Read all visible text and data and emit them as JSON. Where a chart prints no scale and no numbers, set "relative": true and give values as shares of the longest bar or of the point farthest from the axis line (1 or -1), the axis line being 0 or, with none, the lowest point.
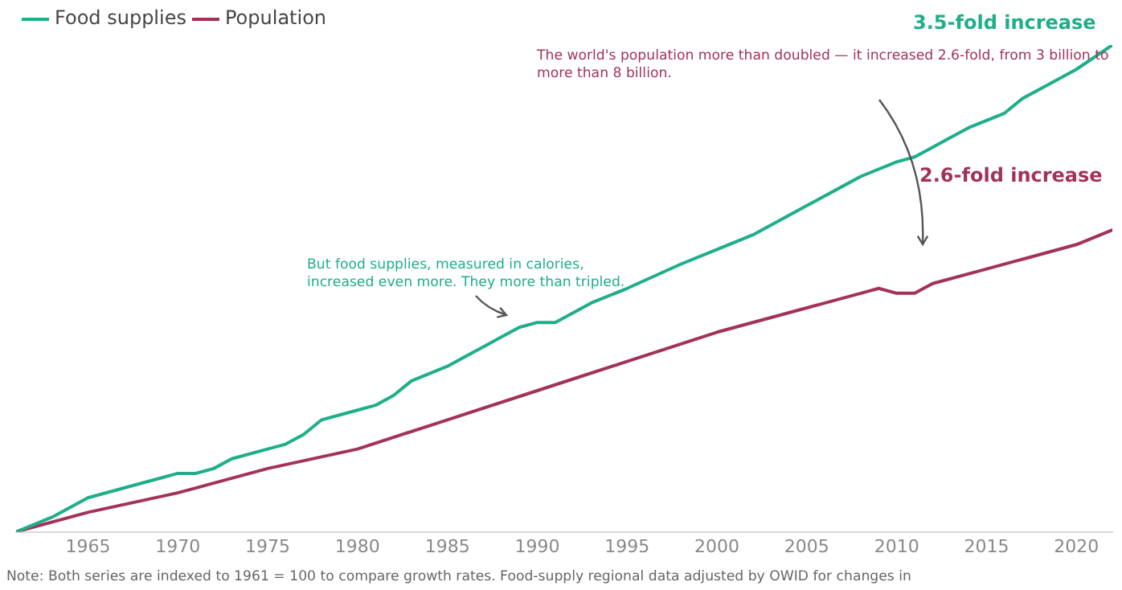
{
  "chart_data": {
    "type": "line",
    "relative": true,
    "xlim": [
      1961,
      2022
    ],
    "xticks": [
      1965,
      1970,
      1975,
      1980,
      1985,
      1990,
      1995,
      2000,
      2005,
      2010,
      2015,
      2020
    ],
    "grid": false,
    "legend": "top left",
    "marker": "none",
    "line_style": "solid",
    "series": [
      {
        "name": "Food supplies",
        "color": "#1fae8a",
        "x": [
          1961,
          1963,
          1965,
          1968,
          1969,
          1970,
          1971,
          1972,
          1973,
          1975,
          1976,
          1977,
          1978,
          1979,
          1980,
          1981,
          1982,
          1983,
          1985,
          1986,
          1987,
          1988,
          1989,
          1990,
          1991,
          1993,
          1995,
          1998,
          2000,
          2002,
          2005,
          2007,
          2008,
          2010,
          2011,
          2012,
          2013,
          2014,
          2016,
          2017,
          2018,
          2020,
          2022
        ],
        "values": [
          0,
          0.03,
          0.07,
          0.1,
          0.11,
          0.12,
          0.12,
          0.13,
          0.15,
          0.17,
          0.18,
          0.2,
          0.23,
          0.24,
          0.25,
          0.26,
          0.28,
          0.31,
          0.34,
          0.36,
          0.38,
          0.4,
          0.42,
          0.43,
          0.43,
          0.47,
          0.5,
          0.55,
          0.58,
          0.61,
          0.67,
          0.71,
          0.73,
          0.76,
          0.77,
          0.79,
          0.81,
          0.83,
          0.86,
          0.89,
          0.91,
          0.95,
          1
        ]
      },
      {
        "name": "Population",
        "color": "#a3325a",
        "x": [
          1961,
          1965,
          1970,
          1975,
          1980,
          1985,
          1990,
          1995,
          2000,
          2005,
          2008,
          2009,
          2010,
          2011,
          2012,
          2015,
          2020,
          2022
        ],
        "values": [
          0,
          0.04,
          0.08,
          0.13,
          0.17,
          0.23,
          0.29,
          0.35,
          0.41,
          0.46,
          0.49,
          0.5,
          0.49,
          0.49,
          0.51,
          0.54,
          0.59,
          0.62
        ]
      }
    ],
    "annotations": [
      "The world's population more than doubled — it increased 2.6-fold, from 3 billion to more than 8 billion.",
      "But food supplies, measured in calories, increased even more. They more than tripled.",
      "3.5-fold increase",
      "2.6-fold increase",
      "Note: Both series are indexed to 1961 = 100 to compare growth rates. Food-supply regional data adjusted by OWID for changes in"
    ]
  }
}
